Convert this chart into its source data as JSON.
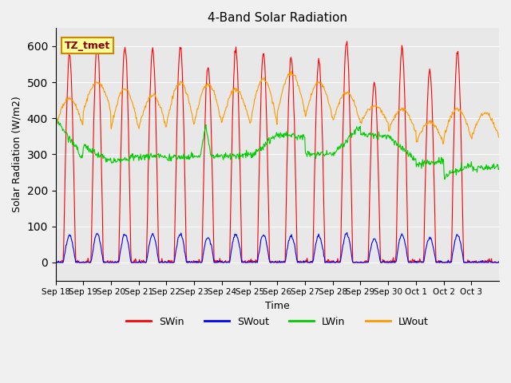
{
  "title": "4-Band Solar Radiation",
  "xlabel": "Time",
  "ylabel": "Solar Radiation (W/m2)",
  "ylim": [
    -50,
    650
  ],
  "background_color": "#e8e8e8",
  "plot_bg_color": "#e8e8e8",
  "grid_color": "#ffffff",
  "annotation_text": "TZ_tmet",
  "annotation_bg": "#ffff99",
  "annotation_border": "#cc8800",
  "colors": {
    "SWin": "#ff0000",
    "SWout": "#0000ff",
    "LWin": "#00cc00",
    "LWout": "#ff9900"
  },
  "x_tick_labels": [
    "Sep 18",
    "Sep 19",
    "Sep 20",
    "Sep 21",
    "Sep 22",
    "Sep 23",
    "Sep 24",
    "Sep 25",
    "Sep 26",
    "Sep 27",
    "Sep 28",
    "Sep 29",
    "Sep 30",
    "Oct 1",
    "Oct 2",
    "Oct 3"
  ],
  "n_days": 16
}
